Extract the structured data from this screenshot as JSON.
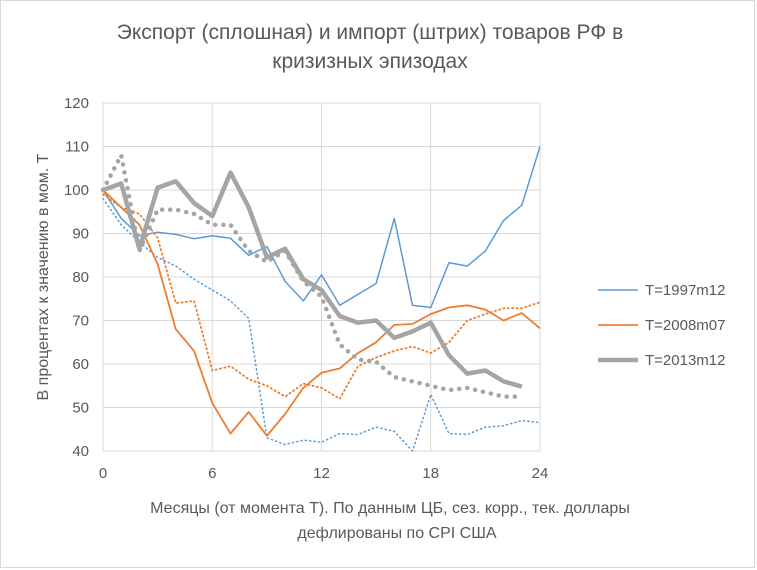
{
  "chart_data": {
    "type": "line",
    "title_lines": [
      "Экспорт (сплошная) и импорт (штрих) товаров РФ в",
      "кризизных эпизодах"
    ],
    "xlabel_lines": [
      "Месяцы (от момента Т). По данным ЦБ, сез. корр., тек. доллары",
      "дефлированы по CPI США"
    ],
    "ylabel": "В процентах к значению в мом. Т",
    "xlim": [
      0,
      24
    ],
    "ylim": [
      40,
      120
    ],
    "x_ticks": [
      "0",
      "6",
      "12",
      "18",
      "24"
    ],
    "y_ticks": [
      "40",
      "50",
      "60",
      "70",
      "80",
      "90",
      "100",
      "110",
      "120"
    ],
    "grid": true,
    "legend_position": "right",
    "legend": [
      {
        "label": "T=1997m12",
        "color": "#5b9bd5",
        "width": 1.5
      },
      {
        "label": "T=2008m07",
        "color": "#ed7d31",
        "width": 1.8
      },
      {
        "label": "T=2013m12",
        "color": "#a5a5a5",
        "width": 4.5
      }
    ],
    "series": [
      {
        "group": 0,
        "style": "solid",
        "x": [
          0,
          1,
          2,
          3,
          4,
          5,
          6,
          7,
          8,
          9,
          10,
          11,
          12,
          13,
          14,
          15,
          16,
          17,
          18,
          19,
          20,
          21,
          22,
          23,
          24
        ],
        "y": [
          100,
          93.5,
          89.5,
          90.3,
          89.8,
          88.8,
          89.5,
          88.9,
          85,
          87,
          79,
          74.5,
          80.5,
          73.5,
          76,
          78.5,
          93.5,
          73.5,
          73,
          83.3,
          82.5,
          86,
          93,
          96.5,
          110
        ]
      },
      {
        "group": 0,
        "style": "dotted",
        "x": [
          0,
          1,
          2,
          3,
          4,
          5,
          6,
          7,
          8,
          9,
          10,
          11,
          12,
          13,
          14,
          15,
          16,
          17,
          18,
          19,
          20,
          21,
          22,
          23,
          24
        ],
        "y": [
          98,
          92,
          88,
          84.5,
          82.5,
          79.5,
          77,
          74.5,
          70.5,
          43,
          41.5,
          42.5,
          42,
          44,
          43.8,
          45.5,
          44.5,
          40,
          53,
          44,
          43.8,
          45.5,
          45.8,
          47,
          46.5
        ]
      },
      {
        "group": 1,
        "style": "solid",
        "x": [
          0,
          1,
          2,
          3,
          4,
          5,
          6,
          7,
          8,
          9,
          10,
          11,
          12,
          13,
          14,
          15,
          16,
          17,
          18,
          19,
          20,
          21,
          22,
          23,
          24
        ],
        "y": [
          100,
          96,
          92,
          83,
          68,
          63,
          51,
          44,
          49,
          43.5,
          48.5,
          54.5,
          58,
          59,
          62.5,
          65,
          69,
          69.2,
          71.5,
          73,
          73.5,
          72.5,
          70,
          71.7,
          68.2
        ]
      },
      {
        "group": 1,
        "style": "dotted",
        "x": [
          0,
          1,
          2,
          3,
          4,
          5,
          6,
          7,
          8,
          9,
          10,
          11,
          12,
          13,
          14,
          15,
          16,
          17,
          18,
          19,
          20,
          21,
          22,
          23,
          24
        ],
        "y": [
          99,
          96,
          94.5,
          89,
          74,
          74.5,
          58.5,
          59.5,
          56.5,
          55,
          52.5,
          55.5,
          54.5,
          52,
          59.5,
          61.5,
          63,
          64,
          62.5,
          65,
          70,
          71.5,
          72.8,
          72.8,
          74.2
        ]
      },
      {
        "group": 2,
        "style": "solid",
        "x": [
          0,
          1,
          2,
          3,
          4,
          5,
          6,
          7,
          8,
          9,
          10,
          11,
          12,
          13,
          14,
          15,
          16,
          17,
          18,
          19,
          20,
          21,
          22,
          23
        ],
        "y": [
          100,
          101.5,
          86.5,
          100.5,
          102,
          97,
          94,
          104,
          96,
          84.5,
          86.5,
          79.5,
          77,
          71,
          69.5,
          70,
          66,
          67.5,
          69.5,
          62,
          57.8,
          58.5,
          56,
          54.8
        ]
      },
      {
        "group": 2,
        "style": "dotted",
        "x": [
          0,
          1,
          2,
          3,
          4,
          5,
          6,
          7,
          8,
          9,
          10,
          11,
          12,
          13,
          14,
          15,
          16,
          17,
          18,
          19,
          20,
          21,
          22,
          23
        ],
        "y": [
          100,
          108,
          86,
          95.5,
          95.5,
          94.5,
          92,
          92,
          86,
          83.5,
          86,
          79,
          75.5,
          64.5,
          61,
          60.5,
          57,
          56,
          55,
          54,
          54.5,
          53.5,
          52.5,
          52.5
        ]
      }
    ]
  }
}
